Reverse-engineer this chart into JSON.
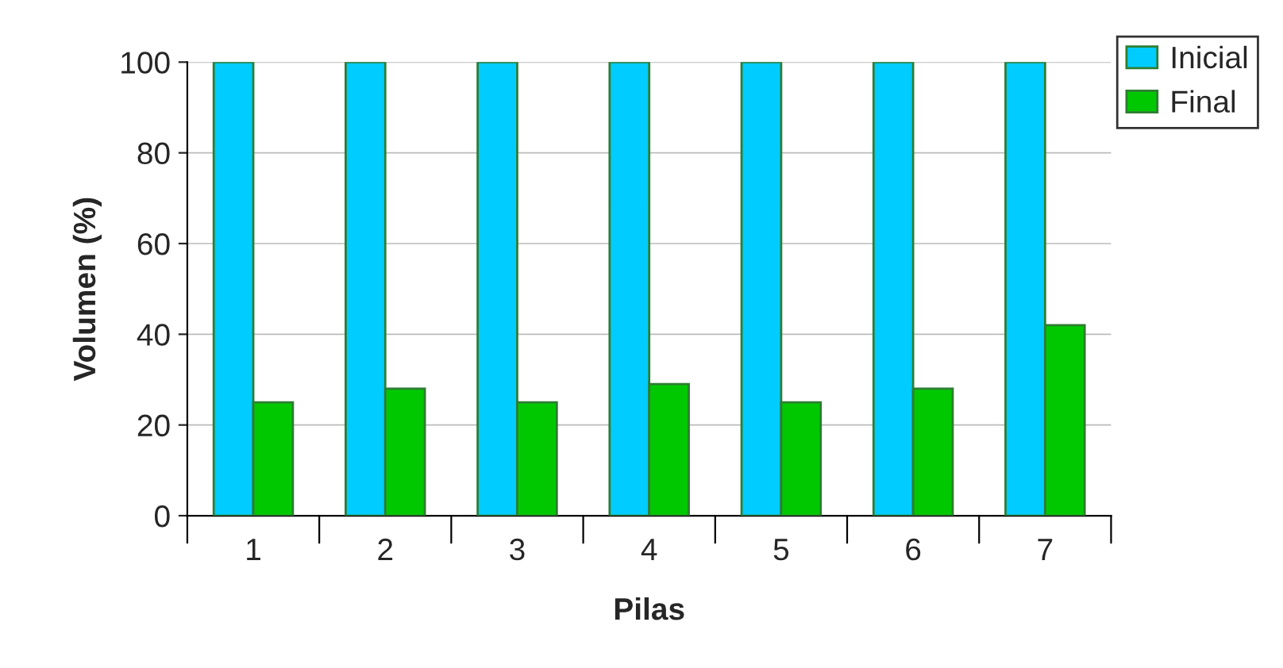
{
  "chart_data": {
    "type": "bar",
    "xlabel": "Pilas",
    "ylabel": "Volumen (%)",
    "categories": [
      "1",
      "2",
      "3",
      "4",
      "5",
      "6",
      "7"
    ],
    "series": [
      {
        "name": "Inicial",
        "color": "#00ccff",
        "values": [
          100,
          100,
          100,
          100,
          100,
          100,
          100
        ]
      },
      {
        "name": "Final",
        "color": "#00c800",
        "values": [
          25,
          28,
          25,
          29,
          25,
          28,
          42
        ]
      }
    ],
    "ylim": [
      0,
      100
    ],
    "yticks": [
      0,
      20,
      40,
      60,
      80,
      100
    ],
    "grid": "y",
    "legend": "top right"
  }
}
